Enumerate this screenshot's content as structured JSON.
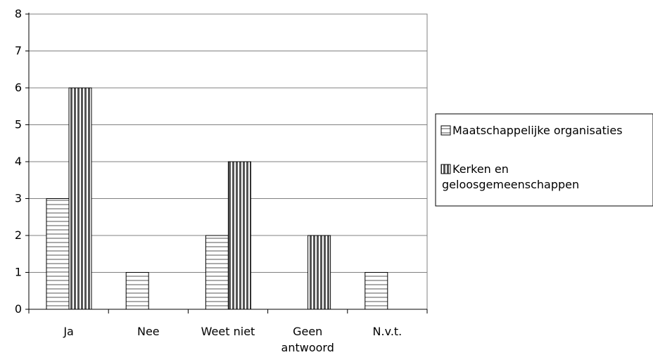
{
  "chart_data": {
    "type": "bar",
    "categories": [
      "Ja",
      "Nee",
      "Weet niet",
      "Geen antwoord",
      "N.v.t."
    ],
    "category_lines": [
      [
        "Ja"
      ],
      [
        "Nee"
      ],
      [
        "Weet niet"
      ],
      [
        "Geen",
        "antwoord"
      ],
      [
        "N.v.t."
      ]
    ],
    "series": [
      {
        "name": "Maatschappelijke organisaties",
        "values": [
          3,
          1,
          2,
          0,
          1
        ],
        "pattern": "horizontal-stripes"
      },
      {
        "name": "Kerken en geloosgemeenschappen",
        "values": [
          6,
          0,
          4,
          2,
          0
        ],
        "pattern": "vertical-stripes"
      }
    ],
    "legend_lines": [
      [
        "Maatschappelijke organisaties"
      ],
      [
        "Kerken en",
        "geloosgemeenschappen"
      ]
    ],
    "ylim": [
      0,
      8
    ],
    "yticks": [
      "0",
      "1",
      "2",
      "3",
      "4",
      "5",
      "6",
      "7",
      "8"
    ],
    "grid": true,
    "legend_position": "right",
    "colors": {
      "bar_fill": "#ffffff",
      "stripe": "#555555",
      "gridline": "#808080",
      "axis": "#000000"
    }
  }
}
